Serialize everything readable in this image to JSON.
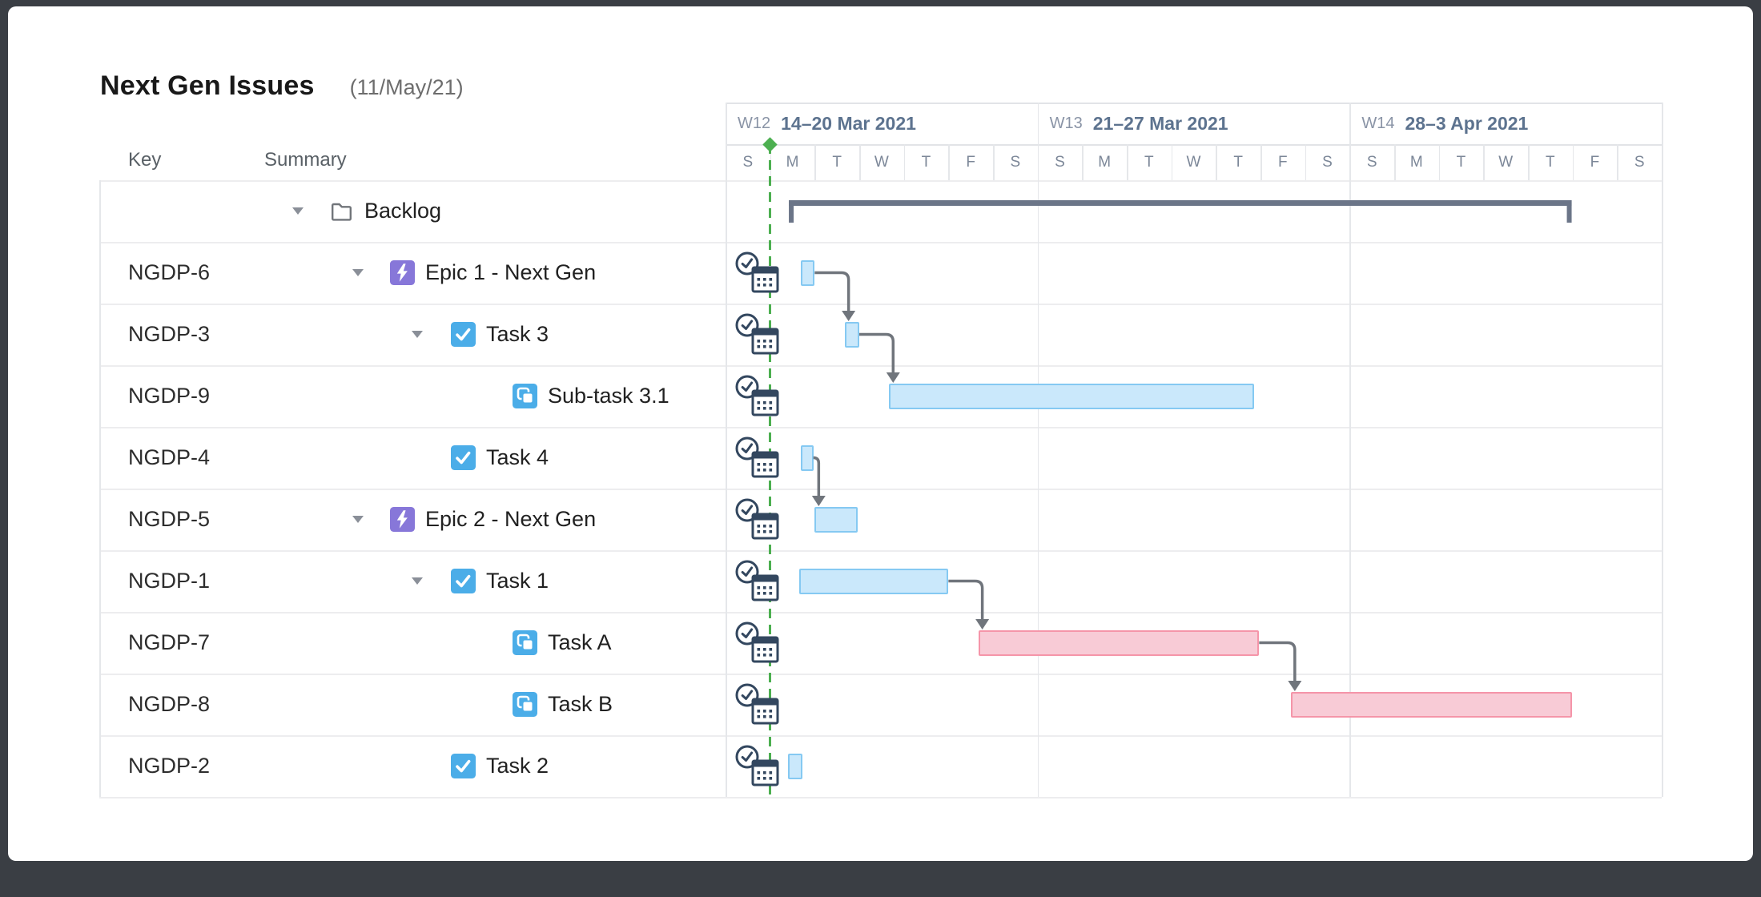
{
  "app": {
    "title": "Next Gen Issues",
    "date_label": "(11/May/21)"
  },
  "columns": {
    "key": "Key",
    "summary": "Summary"
  },
  "colors": {
    "bar_blue_fill": "#cae8fb",
    "bar_blue_border": "#85c9f2",
    "bar_pink_fill": "#f8cbd6",
    "bar_pink_border": "#f595a9",
    "bracket": "#6b7588",
    "connector": "#70757c",
    "today_marker": "#4caf50",
    "epic_icon_bg": "#8777d9",
    "task_icon_bg": "#4bade8",
    "subtask_icon_bg": "#4bade8"
  },
  "timeline": {
    "weeks": [
      {
        "label": "W12",
        "range": "14–20 Mar 2021"
      },
      {
        "label": "W13",
        "range": "21–27 Mar 2021"
      },
      {
        "label": "W14",
        "range": "28–3 Apr 2021"
      }
    ],
    "day_letters": [
      "S",
      "M",
      "T",
      "W",
      "T",
      "F",
      "S"
    ],
    "days_per_week": 7,
    "marker_day": 1.0
  },
  "rows": [
    {
      "key": "",
      "summary": "Backlog",
      "icon": "folder-icon",
      "level": 0,
      "collapsible": true,
      "bar": {
        "kind": "summary-bracket",
        "start_day": 1.42,
        "end_day": 18.98
      }
    },
    {
      "key": "NGDP-6",
      "summary": "Epic 1 - Next Gen",
      "icon": "epic-icon",
      "level": 1,
      "collapsible": true,
      "bar": {
        "kind": "bar",
        "color": "blue",
        "start_day": 1.68,
        "end_day": 2.0
      }
    },
    {
      "key": "NGDP-3",
      "summary": "Task 3",
      "icon": "task-icon",
      "level": 2,
      "collapsible": true,
      "bar": {
        "kind": "bar",
        "color": "blue",
        "start_day": 2.67,
        "end_day": 3.0
      }
    },
    {
      "key": "NGDP-9",
      "summary": "Sub-task 3.1",
      "icon": "subtask-icon",
      "level": 3,
      "collapsible": false,
      "bar": {
        "kind": "bar",
        "color": "blue",
        "start_day": 3.67,
        "end_day": 11.85
      }
    },
    {
      "key": "NGDP-4",
      "summary": "Task 4",
      "icon": "task-icon",
      "level": 2,
      "collapsible": false,
      "bar": {
        "kind": "bar",
        "color": "blue",
        "start_day": 1.68,
        "end_day": 1.97
      }
    },
    {
      "key": "NGDP-5",
      "summary": "Epic 2 - Next Gen",
      "icon": "epic-icon",
      "level": 1,
      "collapsible": true,
      "bar": {
        "kind": "bar",
        "color": "blue",
        "start_day": 2.0,
        "end_day": 2.97
      }
    },
    {
      "key": "NGDP-1",
      "summary": "Task 1",
      "icon": "task-icon",
      "level": 2,
      "collapsible": true,
      "bar": {
        "kind": "bar",
        "color": "blue",
        "start_day": 1.66,
        "end_day": 5.0
      }
    },
    {
      "key": "NGDP-7",
      "summary": "Task A",
      "icon": "subtask-icon",
      "level": 3,
      "collapsible": false,
      "bar": {
        "kind": "bar",
        "color": "pink",
        "start_day": 5.67,
        "end_day": 11.97
      }
    },
    {
      "key": "NGDP-8",
      "summary": "Task B",
      "icon": "subtask-icon",
      "level": 3,
      "collapsible": false,
      "bar": {
        "kind": "bar",
        "color": "pink",
        "start_day": 12.68,
        "end_day": 18.98
      }
    },
    {
      "key": "NGDP-2",
      "summary": "Task 2",
      "icon": "task-icon",
      "level": 2,
      "collapsible": false,
      "bar": {
        "kind": "bar",
        "color": "blue",
        "start_day": 1.4,
        "end_day": 1.72
      }
    }
  ],
  "dependencies": [
    {
      "from_key": "NGDP-6",
      "to_key": "NGDP-3"
    },
    {
      "from_key": "NGDP-3",
      "to_key": "NGDP-9"
    },
    {
      "from_key": "NGDP-4",
      "to_key": "NGDP-5"
    },
    {
      "from_key": "NGDP-1",
      "to_key": "NGDP-7"
    },
    {
      "from_key": "NGDP-7",
      "to_key": "NGDP-8"
    }
  ]
}
